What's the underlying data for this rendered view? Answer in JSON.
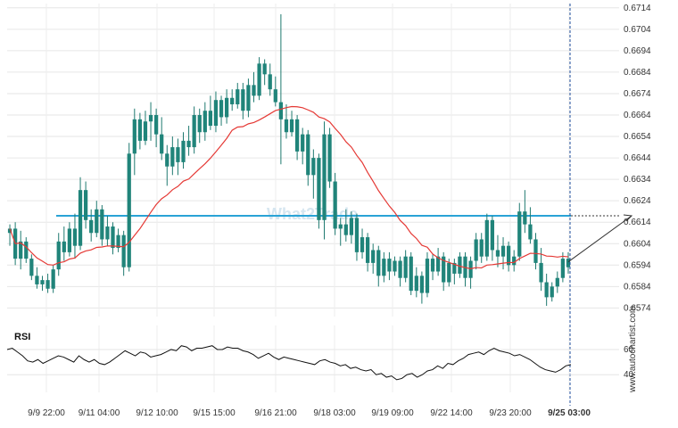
{
  "chart_data": [
    {
      "type": "candlestick",
      "title": "",
      "x_ticks": [
        "9/9 22:00",
        "9/11 04:00",
        "9/12 10:00",
        "9/15 15:00",
        "9/16 21:00",
        "9/18 03:00",
        "9/19 09:00",
        "9/22 14:00",
        "9/23 20:00",
        "9/25 03:00"
      ],
      "highlighted_x_tick": "9/25 03:00",
      "y_ticks": [
        "0.6574",
        "0.6584",
        "0.6594",
        "0.6604",
        "0.6614",
        "0.6624",
        "0.6634",
        "0.6644",
        "0.6654",
        "0.6664",
        "0.6674",
        "0.6684",
        "0.6694",
        "0.6704",
        "0.6714"
      ],
      "ylim": [
        0.657,
        0.6716
      ],
      "grid": true,
      "candles": [
        {
          "o": 0.6609,
          "h": 0.6613,
          "l": 0.6603,
          "c": 0.6611
        },
        {
          "o": 0.6611,
          "h": 0.6614,
          "l": 0.6594,
          "c": 0.6597
        },
        {
          "o": 0.6597,
          "h": 0.661,
          "l": 0.6592,
          "c": 0.6605
        },
        {
          "o": 0.6605,
          "h": 0.6607,
          "l": 0.6595,
          "c": 0.6597
        },
        {
          "o": 0.6597,
          "h": 0.6599,
          "l": 0.6587,
          "c": 0.6589
        },
        {
          "o": 0.6589,
          "h": 0.6593,
          "l": 0.6583,
          "c": 0.6585
        },
        {
          "o": 0.6585,
          "h": 0.6589,
          "l": 0.6582,
          "c": 0.6587
        },
        {
          "o": 0.6587,
          "h": 0.659,
          "l": 0.6581,
          "c": 0.6583
        },
        {
          "o": 0.6583,
          "h": 0.6594,
          "l": 0.6581,
          "c": 0.6592
        },
        {
          "o": 0.6592,
          "h": 0.6609,
          "l": 0.6589,
          "c": 0.6605
        },
        {
          "o": 0.6605,
          "h": 0.6612,
          "l": 0.6596,
          "c": 0.66
        },
        {
          "o": 0.66,
          "h": 0.6614,
          "l": 0.6598,
          "c": 0.6611
        },
        {
          "o": 0.6611,
          "h": 0.6618,
          "l": 0.6597,
          "c": 0.6603
        },
        {
          "o": 0.6603,
          "h": 0.6635,
          "l": 0.6601,
          "c": 0.6629
        },
        {
          "o": 0.6629,
          "h": 0.6633,
          "l": 0.6611,
          "c": 0.6615
        },
        {
          "o": 0.6615,
          "h": 0.662,
          "l": 0.6605,
          "c": 0.6609
        },
        {
          "o": 0.6609,
          "h": 0.6624,
          "l": 0.6607,
          "c": 0.662
        },
        {
          "o": 0.662,
          "h": 0.6622,
          "l": 0.6603,
          "c": 0.6606
        },
        {
          "o": 0.6606,
          "h": 0.6617,
          "l": 0.6603,
          "c": 0.6612
        },
        {
          "o": 0.6612,
          "h": 0.6614,
          "l": 0.6599,
          "c": 0.6602
        },
        {
          "o": 0.6602,
          "h": 0.6611,
          "l": 0.66,
          "c": 0.6608
        },
        {
          "o": 0.6608,
          "h": 0.661,
          "l": 0.6589,
          "c": 0.6593
        },
        {
          "o": 0.6593,
          "h": 0.6651,
          "l": 0.6591,
          "c": 0.6646
        },
        {
          "o": 0.6646,
          "h": 0.6667,
          "l": 0.6636,
          "c": 0.6662
        },
        {
          "o": 0.6662,
          "h": 0.6665,
          "l": 0.6648,
          "c": 0.6652
        },
        {
          "o": 0.6652,
          "h": 0.6666,
          "l": 0.665,
          "c": 0.6661
        },
        {
          "o": 0.6661,
          "h": 0.667,
          "l": 0.6652,
          "c": 0.6664
        },
        {
          "o": 0.6664,
          "h": 0.6667,
          "l": 0.6649,
          "c": 0.6655
        },
        {
          "o": 0.6655,
          "h": 0.6663,
          "l": 0.6643,
          "c": 0.6646
        },
        {
          "o": 0.6646,
          "h": 0.665,
          "l": 0.6631,
          "c": 0.664
        },
        {
          "o": 0.664,
          "h": 0.6654,
          "l": 0.6636,
          "c": 0.6649
        },
        {
          "o": 0.6649,
          "h": 0.6653,
          "l": 0.6636,
          "c": 0.6642
        },
        {
          "o": 0.6642,
          "h": 0.6656,
          "l": 0.6639,
          "c": 0.6652
        },
        {
          "o": 0.6652,
          "h": 0.6659,
          "l": 0.6645,
          "c": 0.6649
        },
        {
          "o": 0.6649,
          "h": 0.6668,
          "l": 0.6646,
          "c": 0.6664
        },
        {
          "o": 0.6664,
          "h": 0.6667,
          "l": 0.6651,
          "c": 0.6656
        },
        {
          "o": 0.6656,
          "h": 0.667,
          "l": 0.6652,
          "c": 0.6666
        },
        {
          "o": 0.6666,
          "h": 0.6673,
          "l": 0.6657,
          "c": 0.6659
        },
        {
          "o": 0.6659,
          "h": 0.6675,
          "l": 0.6656,
          "c": 0.6671
        },
        {
          "o": 0.6671,
          "h": 0.6673,
          "l": 0.6659,
          "c": 0.6663
        },
        {
          "o": 0.6663,
          "h": 0.6676,
          "l": 0.666,
          "c": 0.6672
        },
        {
          "o": 0.6672,
          "h": 0.6676,
          "l": 0.6666,
          "c": 0.6669
        },
        {
          "o": 0.6669,
          "h": 0.6679,
          "l": 0.6667,
          "c": 0.6676
        },
        {
          "o": 0.6676,
          "h": 0.6679,
          "l": 0.6662,
          "c": 0.6666
        },
        {
          "o": 0.6666,
          "h": 0.6681,
          "l": 0.6663,
          "c": 0.6678
        },
        {
          "o": 0.6678,
          "h": 0.6684,
          "l": 0.667,
          "c": 0.6673
        },
        {
          "o": 0.6673,
          "h": 0.6691,
          "l": 0.6671,
          "c": 0.6688
        },
        {
          "o": 0.6688,
          "h": 0.669,
          "l": 0.6678,
          "c": 0.6683
        },
        {
          "o": 0.6683,
          "h": 0.6688,
          "l": 0.6673,
          "c": 0.6676
        },
        {
          "o": 0.6676,
          "h": 0.6682,
          "l": 0.6668,
          "c": 0.667
        },
        {
          "o": 0.667,
          "h": 0.6711,
          "l": 0.6641,
          "c": 0.6662
        },
        {
          "o": 0.6662,
          "h": 0.6669,
          "l": 0.6653,
          "c": 0.6656
        },
        {
          "o": 0.6656,
          "h": 0.6666,
          "l": 0.6654,
          "c": 0.6662
        },
        {
          "o": 0.6662,
          "h": 0.6664,
          "l": 0.6643,
          "c": 0.6647
        },
        {
          "o": 0.6647,
          "h": 0.6658,
          "l": 0.6641,
          "c": 0.6655
        },
        {
          "o": 0.6655,
          "h": 0.6657,
          "l": 0.6631,
          "c": 0.6636
        },
        {
          "o": 0.6636,
          "h": 0.6648,
          "l": 0.6625,
          "c": 0.6644
        },
        {
          "o": 0.6644,
          "h": 0.6646,
          "l": 0.6611,
          "c": 0.6615
        },
        {
          "o": 0.6615,
          "h": 0.6661,
          "l": 0.6606,
          "c": 0.6655
        },
        {
          "o": 0.6655,
          "h": 0.6658,
          "l": 0.663,
          "c": 0.6633
        },
        {
          "o": 0.6633,
          "h": 0.6637,
          "l": 0.6608,
          "c": 0.6611
        },
        {
          "o": 0.6611,
          "h": 0.6616,
          "l": 0.6603,
          "c": 0.6613
        },
        {
          "o": 0.6613,
          "h": 0.662,
          "l": 0.6605,
          "c": 0.6608
        },
        {
          "o": 0.6608,
          "h": 0.6619,
          "l": 0.6604,
          "c": 0.6616
        },
        {
          "o": 0.6616,
          "h": 0.6618,
          "l": 0.6596,
          "c": 0.66
        },
        {
          "o": 0.66,
          "h": 0.6611,
          "l": 0.6597,
          "c": 0.6607
        },
        {
          "o": 0.6607,
          "h": 0.6609,
          "l": 0.6591,
          "c": 0.6595
        },
        {
          "o": 0.6595,
          "h": 0.6604,
          "l": 0.659,
          "c": 0.6601
        },
        {
          "o": 0.6601,
          "h": 0.6603,
          "l": 0.6584,
          "c": 0.6589
        },
        {
          "o": 0.6589,
          "h": 0.66,
          "l": 0.6586,
          "c": 0.6597
        },
        {
          "o": 0.6597,
          "h": 0.66,
          "l": 0.6587,
          "c": 0.6591
        },
        {
          "o": 0.6591,
          "h": 0.6598,
          "l": 0.6589,
          "c": 0.6596
        },
        {
          "o": 0.6596,
          "h": 0.6598,
          "l": 0.6584,
          "c": 0.6588
        },
        {
          "o": 0.6588,
          "h": 0.6601,
          "l": 0.6586,
          "c": 0.6598
        },
        {
          "o": 0.6598,
          "h": 0.66,
          "l": 0.658,
          "c": 0.6582
        },
        {
          "o": 0.6582,
          "h": 0.6593,
          "l": 0.6579,
          "c": 0.6589
        },
        {
          "o": 0.6589,
          "h": 0.6591,
          "l": 0.6576,
          "c": 0.6581
        },
        {
          "o": 0.6581,
          "h": 0.66,
          "l": 0.6579,
          "c": 0.6597
        },
        {
          "o": 0.6597,
          "h": 0.6599,
          "l": 0.6587,
          "c": 0.6591
        },
        {
          "o": 0.6591,
          "h": 0.6602,
          "l": 0.6589,
          "c": 0.6598
        },
        {
          "o": 0.6598,
          "h": 0.66,
          "l": 0.6582,
          "c": 0.6586
        },
        {
          "o": 0.6586,
          "h": 0.6597,
          "l": 0.6584,
          "c": 0.6595
        },
        {
          "o": 0.6595,
          "h": 0.6597,
          "l": 0.6585,
          "c": 0.659
        },
        {
          "o": 0.659,
          "h": 0.66,
          "l": 0.6588,
          "c": 0.6598
        },
        {
          "o": 0.6598,
          "h": 0.66,
          "l": 0.6584,
          "c": 0.6588
        },
        {
          "o": 0.6588,
          "h": 0.6598,
          "l": 0.6583,
          "c": 0.6596
        },
        {
          "o": 0.6596,
          "h": 0.6609,
          "l": 0.6592,
          "c": 0.6606
        },
        {
          "o": 0.6606,
          "h": 0.6609,
          "l": 0.6595,
          "c": 0.6598
        },
        {
          "o": 0.6598,
          "h": 0.6618,
          "l": 0.6596,
          "c": 0.6615
        },
        {
          "o": 0.6615,
          "h": 0.6617,
          "l": 0.6596,
          "c": 0.6601
        },
        {
          "o": 0.6601,
          "h": 0.6608,
          "l": 0.6593,
          "c": 0.6598
        },
        {
          "o": 0.6598,
          "h": 0.6607,
          "l": 0.6592,
          "c": 0.6603
        },
        {
          "o": 0.6603,
          "h": 0.6605,
          "l": 0.6591,
          "c": 0.6594
        },
        {
          "o": 0.6594,
          "h": 0.6601,
          "l": 0.6591,
          "c": 0.6598
        },
        {
          "o": 0.6598,
          "h": 0.6623,
          "l": 0.6596,
          "c": 0.6619
        },
        {
          "o": 0.6619,
          "h": 0.6629,
          "l": 0.6609,
          "c": 0.6613
        },
        {
          "o": 0.6613,
          "h": 0.6621,
          "l": 0.6604,
          "c": 0.6606
        },
        {
          "o": 0.6606,
          "h": 0.6609,
          "l": 0.6592,
          "c": 0.6595
        },
        {
          "o": 0.6595,
          "h": 0.6602,
          "l": 0.6582,
          "c": 0.6586
        },
        {
          "o": 0.6586,
          "h": 0.659,
          "l": 0.6575,
          "c": 0.6579
        },
        {
          "o": 0.6579,
          "h": 0.6586,
          "l": 0.6577,
          "c": 0.6584
        },
        {
          "o": 0.6584,
          "h": 0.6591,
          "l": 0.6581,
          "c": 0.6588
        },
        {
          "o": 0.6588,
          "h": 0.66,
          "l": 0.6586,
          "c": 0.6597
        },
        {
          "o": 0.6597,
          "h": 0.66,
          "l": 0.659,
          "c": 0.6593
        }
      ],
      "moving_average": {
        "color": "#e53935",
        "period": 20
      },
      "resistance_level": 0.6617,
      "resistance_color": "#29a3d6",
      "forecast_target": 0.6617,
      "watermark": "What2Trade",
      "vertical_label": "www.autochartist.com"
    },
    {
      "type": "line",
      "label": "RSI",
      "y_ticks": [
        "60",
        "40"
      ],
      "ylim": [
        26,
        72
      ],
      "values": [
        60,
        61,
        58,
        55,
        51,
        50,
        52,
        49,
        51,
        53,
        55,
        54,
        52,
        50,
        55,
        52,
        50,
        52,
        49,
        48,
        50,
        53,
        56,
        59,
        57,
        55,
        58,
        57,
        54,
        55,
        56,
        58,
        60,
        59,
        63,
        62,
        59,
        61,
        61,
        62,
        63,
        60,
        60,
        62,
        61,
        61,
        59,
        58,
        56,
        53,
        55,
        57,
        54,
        52,
        54,
        53,
        52,
        51,
        50,
        49,
        48,
        51,
        52,
        50,
        49,
        47,
        48,
        45,
        46,
        44,
        43,
        44,
        40,
        41,
        38,
        39,
        36,
        37,
        40,
        41,
        38,
        40,
        43,
        44,
        47,
        45,
        49,
        48,
        51,
        53,
        56,
        57,
        58,
        56,
        59,
        61,
        59,
        58,
        57,
        55,
        56,
        54,
        52,
        49,
        46,
        44,
        43,
        42,
        44,
        47,
        48
      ]
    }
  ]
}
